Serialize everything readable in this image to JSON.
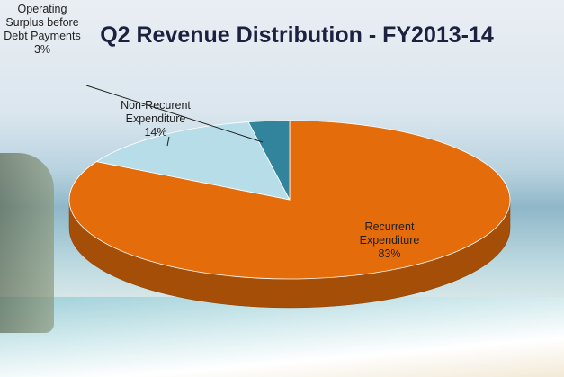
{
  "chart_data": {
    "type": "pie",
    "title": "Q2 Revenue Distribution - FY2013-14",
    "categories": [
      "Recurrent Expenditure",
      "Non-Recurent Expenditure",
      "Operating Surplus before Debt Payments"
    ],
    "values": [
      83,
      14,
      3
    ],
    "value_labels": [
      "83%",
      "14%",
      "3%"
    ],
    "colors": [
      "#e46c0a",
      "#b7dde8",
      "#31849b"
    ]
  }
}
